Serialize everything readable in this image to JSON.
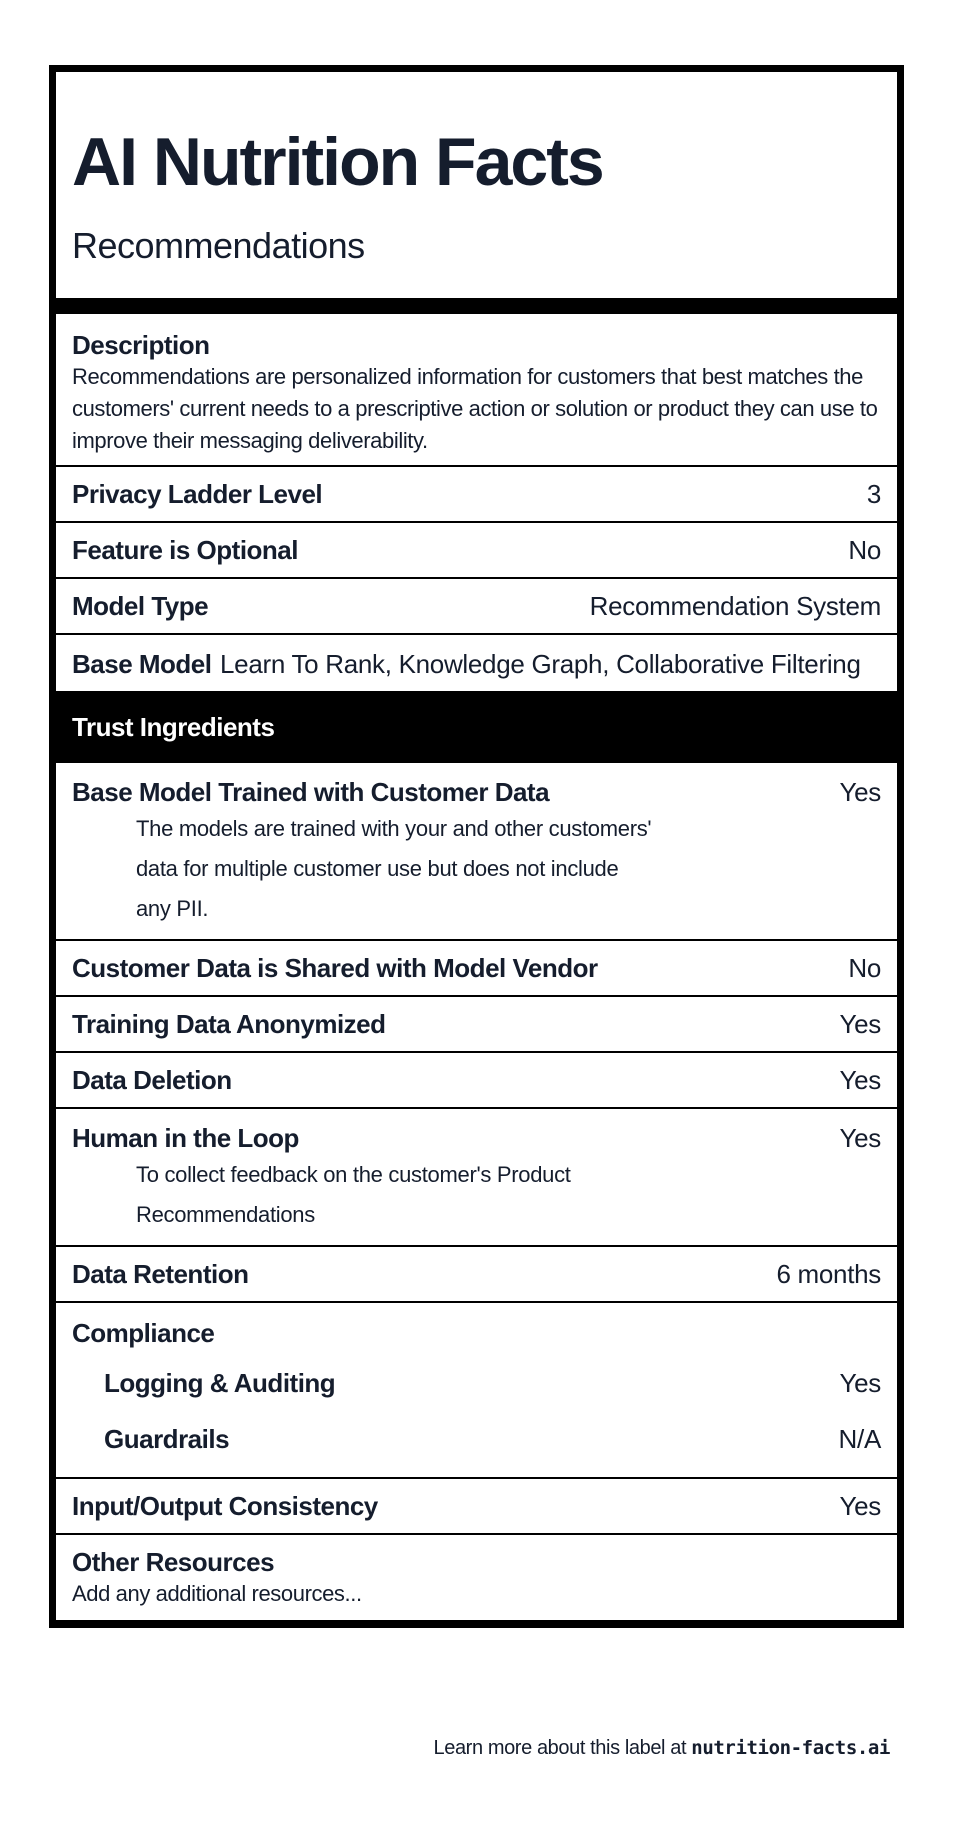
{
  "header": {
    "title": "AI Nutrition Facts",
    "subtitle": "Recommendations"
  },
  "description": {
    "label": "Description",
    "text": "Recommendations are personalized information for customers that best matches the customers' current needs to a prescriptive action or solution or product they can use to improve their messaging deliverability."
  },
  "facts": [
    {
      "label": "Privacy Ladder Level",
      "value": "3"
    },
    {
      "label": "Feature is Optional",
      "value": "No"
    },
    {
      "label": "Model Type",
      "value": "Recommendation System"
    }
  ],
  "base_model": {
    "label": "Base Model",
    "value": "Learn To Rank, Knowledge Graph, Collaborative Filtering"
  },
  "trust": {
    "heading": "Trust Ingredients",
    "items": [
      {
        "label": "Base Model Trained with Customer Data",
        "value": "Yes",
        "note": "The models are trained with your and other customers' data for multiple customer use but does not include any PII."
      },
      {
        "label": "Customer Data is Shared with Model Vendor",
        "value": "No"
      },
      {
        "label": "Training Data Anonymized",
        "value": "Yes"
      },
      {
        "label": "Data Deletion",
        "value": "Yes"
      },
      {
        "label": "Human in the Loop",
        "value": "Yes",
        "note": "To collect feedback on the customer's Product Recommendations"
      },
      {
        "label": "Data Retention",
        "value": "6 months"
      }
    ],
    "compliance": {
      "label": "Compliance",
      "items": [
        {
          "label": "Logging & Auditing",
          "value": "Yes"
        },
        {
          "label": "Guardrails",
          "value": "N/A"
        }
      ]
    },
    "consistency": {
      "label": "Input/Output Consistency",
      "value": "Yes"
    },
    "other": {
      "label": "Other Resources",
      "text": "Add any additional resources..."
    }
  },
  "footer": {
    "text": "Learn more about this label at ",
    "link": "nutrition-facts.ai"
  }
}
